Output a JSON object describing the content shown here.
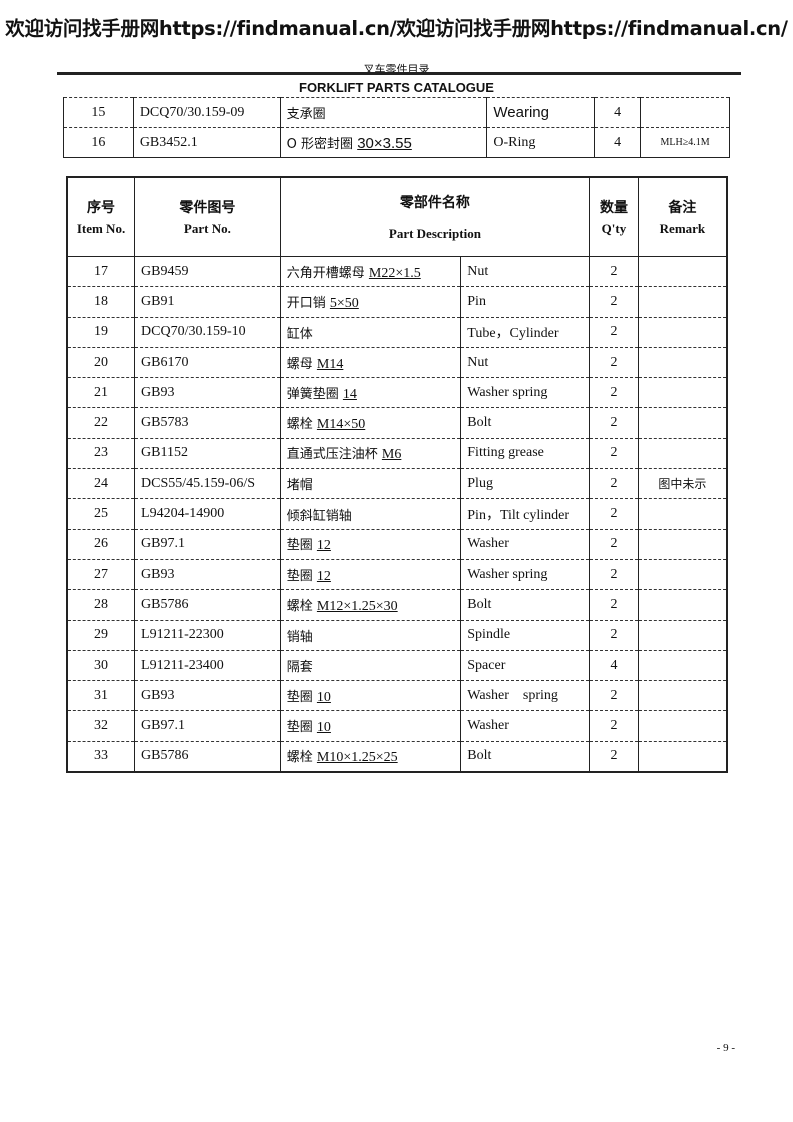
{
  "watermark": "欢迎访问找手册网https://findmanual.cn/欢迎访问找手册网https://findmanual.cn/",
  "header": {
    "title_cn": "叉车零件目录",
    "title_en": "FORKLIFT PARTS CATALOGUE"
  },
  "table_top": [
    {
      "item": "15",
      "part": "DCQ70/30.159-09",
      "name_cn": "支承圈",
      "spec": "",
      "name_en": "Wearing",
      "qty": "4",
      "remark": ""
    },
    {
      "item": "16",
      "part": "GB3452.1",
      "name_cn": "O 形密封圈",
      "spec": "30×3.55",
      "name_en": "O-Ring",
      "qty": "4",
      "remark": "MLH≥4.1M"
    }
  ],
  "columns": {
    "item_cn": "序号",
    "item_en": "Item No.",
    "part_cn": "零件图号",
    "part_en": "Part No.",
    "desc_cn": "零部件名称",
    "desc_en": "Part Description",
    "qty_cn": "数量",
    "qty_en": "Q'ty",
    "remark_cn": "备注",
    "remark_en": "Remark"
  },
  "rows": [
    {
      "item": "17",
      "part": "GB9459",
      "name_cn": "六角开槽螺母",
      "spec": "M22×1.5",
      "name_en": "Nut",
      "qty": "2",
      "remark": ""
    },
    {
      "item": "18",
      "part": "GB91",
      "name_cn": "开口销",
      "spec": "5×50",
      "name_en": "Pin",
      "qty": "2",
      "remark": ""
    },
    {
      "item": "19",
      "part": "DCQ70/30.159-10",
      "name_cn": "缸体",
      "spec": "",
      "name_en": "Tube，Cylinder",
      "qty": "2",
      "remark": ""
    },
    {
      "item": "20",
      "part": "GB6170",
      "name_cn": "螺母",
      "spec": "M14",
      "name_en": "Nut",
      "qty": "2",
      "remark": ""
    },
    {
      "item": "21",
      "part": "GB93",
      "name_cn": "弹簧垫圈",
      "spec": "14",
      "name_en": "Washer spring",
      "qty": "2",
      "remark": ""
    },
    {
      "item": "22",
      "part": "GB5783",
      "name_cn": "螺栓",
      "spec": "M14×50",
      "name_en": "Bolt",
      "qty": "2",
      "remark": ""
    },
    {
      "item": "23",
      "part": "GB1152",
      "name_cn": "直通式压注油杯",
      "spec": "M6",
      "name_en": "Fitting grease",
      "qty": "2",
      "remark": ""
    },
    {
      "item": "24",
      "part": "DCS55/45.159-06/S",
      "name_cn": "堵帽",
      "spec": "",
      "name_en": "Plug",
      "qty": "2",
      "remark": "图中未示"
    },
    {
      "item": "25",
      "part": "L94204-14900",
      "name_cn": "倾斜缸销轴",
      "spec": "",
      "name_en": "Pin，Tilt cylinder",
      "qty": "2",
      "remark": ""
    },
    {
      "item": "26",
      "part": "GB97.1",
      "name_cn": "垫圈",
      "spec": "12",
      "name_en": "Washer",
      "qty": "2",
      "remark": ""
    },
    {
      "item": "27",
      "part": "GB93",
      "name_cn": "垫圈",
      "spec": "12",
      "name_en": "Washer spring",
      "qty": "2",
      "remark": ""
    },
    {
      "item": "28",
      "part": "GB5786",
      "name_cn": "螺栓",
      "spec": "M12×1.25×30",
      "name_en": "Bolt",
      "qty": "2",
      "remark": ""
    },
    {
      "item": "29",
      "part": "L91211-22300",
      "name_cn": "销轴",
      "spec": "",
      "name_en": "Spindle",
      "qty": "2",
      "remark": ""
    },
    {
      "item": "30",
      "part": "L91211-23400",
      "name_cn": "隔套",
      "spec": "",
      "name_en": "Spacer",
      "qty": "4",
      "remark": ""
    },
    {
      "item": "31",
      "part": "GB93",
      "name_cn": "垫圈",
      "spec": "10",
      "name_en": "Washer    spring",
      "qty": "2",
      "remark": ""
    },
    {
      "item": "32",
      "part": "GB97.1",
      "name_cn": "垫圈",
      "spec": "10",
      "name_en": "Washer",
      "qty": "2",
      "remark": ""
    },
    {
      "item": "33",
      "part": "GB5786",
      "name_cn": "螺栓",
      "spec": "M10×1.25×25",
      "name_en": "Bolt",
      "qty": "2",
      "remark": ""
    }
  ],
  "page_number": "- 9 -"
}
